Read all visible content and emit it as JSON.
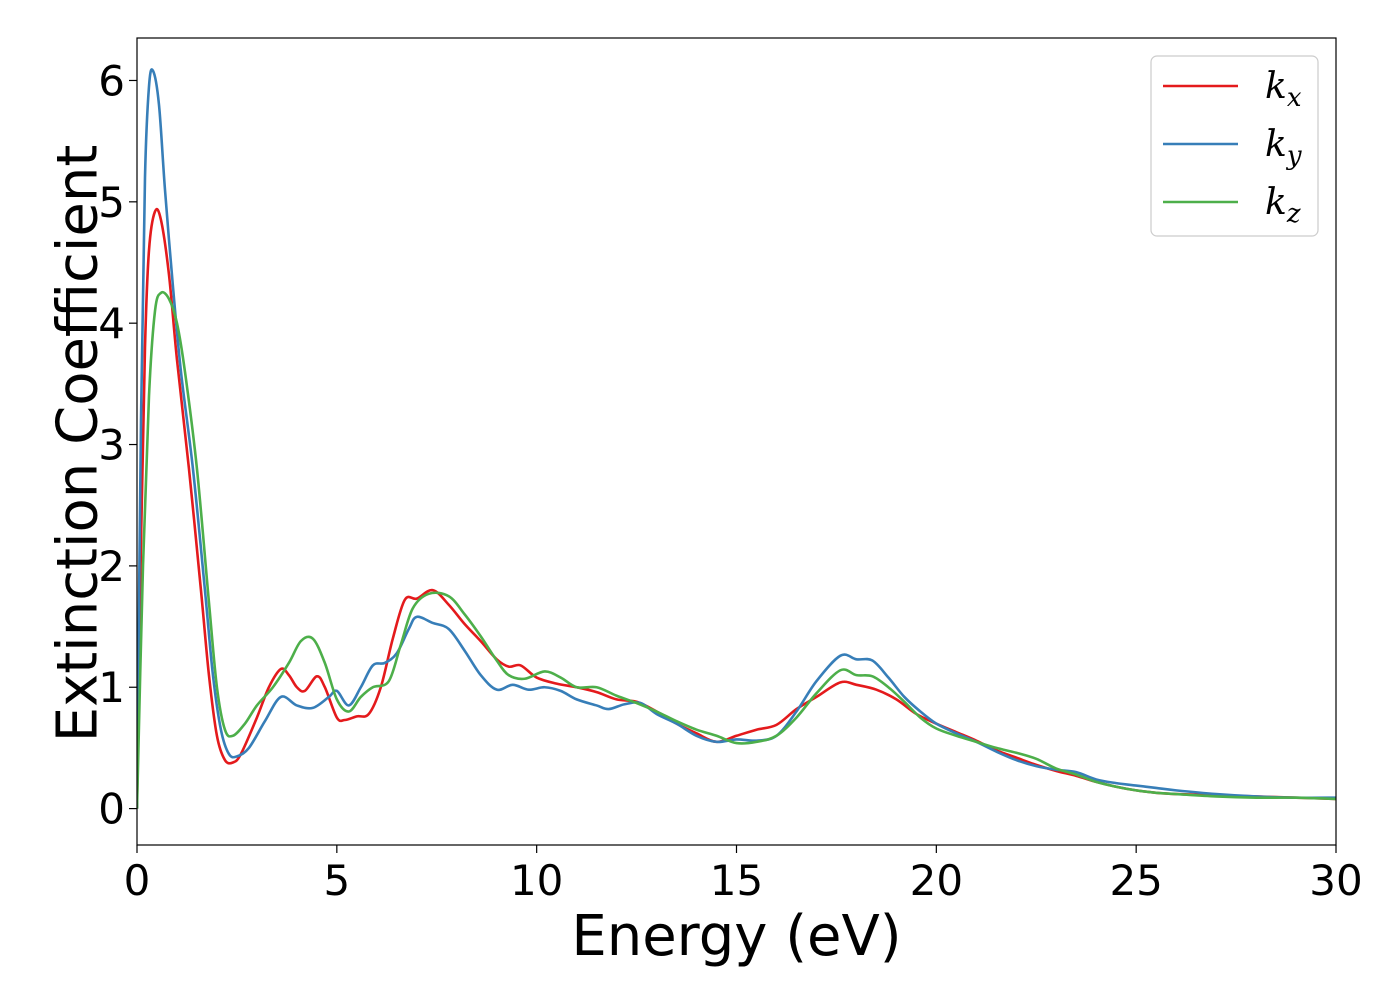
{
  "chart_data": {
    "type": "line",
    "title": "",
    "xlabel": "Energy (eV)",
    "ylabel": "Extinction Coefficient",
    "xlim": [
      0,
      30
    ],
    "ylim": [
      -0.3,
      6.35
    ],
    "xticks": [
      0,
      5,
      10,
      15,
      20,
      25,
      30
    ],
    "yticks": [
      0,
      1,
      2,
      3,
      4,
      5,
      6
    ],
    "grid": false,
    "legend_position": "top-right",
    "series": [
      {
        "name": "k",
        "subscript": "x",
        "color": "#e41a1c",
        "points": [
          [
            0,
            0
          ],
          [
            0.1,
            2.2
          ],
          [
            0.2,
            3.8
          ],
          [
            0.3,
            4.6
          ],
          [
            0.45,
            4.92
          ],
          [
            0.6,
            4.85
          ],
          [
            0.8,
            4.4
          ],
          [
            1.0,
            3.7
          ],
          [
            1.3,
            2.8
          ],
          [
            1.6,
            1.8
          ],
          [
            1.8,
            1.1
          ],
          [
            2.0,
            0.6
          ],
          [
            2.2,
            0.4
          ],
          [
            2.4,
            0.38
          ],
          [
            2.6,
            0.45
          ],
          [
            3.0,
            0.75
          ],
          [
            3.3,
            1.0
          ],
          [
            3.6,
            1.15
          ],
          [
            3.8,
            1.1
          ],
          [
            4.0,
            1.0
          ],
          [
            4.2,
            0.97
          ],
          [
            4.5,
            1.09
          ],
          [
            4.7,
            1.0
          ],
          [
            5.0,
            0.75
          ],
          [
            5.2,
            0.73
          ],
          [
            5.5,
            0.76
          ],
          [
            5.8,
            0.78
          ],
          [
            6.1,
            1.0
          ],
          [
            6.4,
            1.4
          ],
          [
            6.7,
            1.72
          ],
          [
            7.0,
            1.73
          ],
          [
            7.4,
            1.8
          ],
          [
            7.8,
            1.68
          ],
          [
            8.2,
            1.52
          ],
          [
            8.6,
            1.38
          ],
          [
            9.0,
            1.23
          ],
          [
            9.3,
            1.17
          ],
          [
            9.6,
            1.18
          ],
          [
            10.0,
            1.08
          ],
          [
            10.5,
            1.03
          ],
          [
            11.0,
            1.0
          ],
          [
            11.5,
            0.96
          ],
          [
            12.0,
            0.9
          ],
          [
            12.5,
            0.88
          ],
          [
            13.0,
            0.8
          ],
          [
            13.5,
            0.7
          ],
          [
            14.0,
            0.62
          ],
          [
            14.5,
            0.55
          ],
          [
            15.0,
            0.6
          ],
          [
            15.5,
            0.65
          ],
          [
            16.0,
            0.69
          ],
          [
            16.5,
            0.82
          ],
          [
            17.0,
            0.92
          ],
          [
            17.6,
            1.04
          ],
          [
            18.0,
            1.02
          ],
          [
            18.5,
            0.98
          ],
          [
            19.0,
            0.9
          ],
          [
            19.5,
            0.78
          ],
          [
            20.0,
            0.7
          ],
          [
            20.5,
            0.63
          ],
          [
            21.0,
            0.56
          ],
          [
            21.5,
            0.48
          ],
          [
            22.0,
            0.42
          ],
          [
            22.5,
            0.36
          ],
          [
            23.0,
            0.31
          ],
          [
            23.5,
            0.27
          ],
          [
            24.0,
            0.22
          ],
          [
            24.5,
            0.18
          ],
          [
            25.0,
            0.15
          ],
          [
            25.5,
            0.13
          ],
          [
            26.0,
            0.12
          ],
          [
            27.0,
            0.11
          ],
          [
            28.0,
            0.1
          ],
          [
            29.0,
            0.09
          ],
          [
            30.0,
            0.08
          ]
        ]
      },
      {
        "name": "k",
        "subscript": "y",
        "color": "#377eb8",
        "points": [
          [
            0,
            0
          ],
          [
            0.1,
            3.2
          ],
          [
            0.2,
            5.2
          ],
          [
            0.3,
            5.95
          ],
          [
            0.4,
            6.08
          ],
          [
            0.55,
            5.8
          ],
          [
            0.7,
            5.1
          ],
          [
            0.9,
            4.3
          ],
          [
            1.1,
            3.6
          ],
          [
            1.4,
            2.8
          ],
          [
            1.7,
            1.8
          ],
          [
            1.9,
            1.1
          ],
          [
            2.1,
            0.65
          ],
          [
            2.3,
            0.45
          ],
          [
            2.5,
            0.43
          ],
          [
            2.8,
            0.5
          ],
          [
            3.2,
            0.72
          ],
          [
            3.6,
            0.92
          ],
          [
            4.0,
            0.85
          ],
          [
            4.4,
            0.83
          ],
          [
            4.8,
            0.92
          ],
          [
            5.0,
            0.97
          ],
          [
            5.3,
            0.85
          ],
          [
            5.6,
            1.0
          ],
          [
            5.9,
            1.18
          ],
          [
            6.2,
            1.2
          ],
          [
            6.5,
            1.28
          ],
          [
            6.8,
            1.48
          ],
          [
            7.0,
            1.58
          ],
          [
            7.4,
            1.53
          ],
          [
            7.8,
            1.48
          ],
          [
            8.2,
            1.3
          ],
          [
            8.6,
            1.1
          ],
          [
            9.0,
            0.98
          ],
          [
            9.4,
            1.02
          ],
          [
            9.8,
            0.98
          ],
          [
            10.2,
            1.0
          ],
          [
            10.6,
            0.97
          ],
          [
            11.0,
            0.9
          ],
          [
            11.5,
            0.85
          ],
          [
            11.8,
            0.82
          ],
          [
            12.2,
            0.86
          ],
          [
            12.6,
            0.87
          ],
          [
            13.0,
            0.78
          ],
          [
            13.5,
            0.7
          ],
          [
            14.0,
            0.6
          ],
          [
            14.5,
            0.55
          ],
          [
            15.0,
            0.57
          ],
          [
            15.5,
            0.56
          ],
          [
            16.0,
            0.6
          ],
          [
            16.5,
            0.8
          ],
          [
            17.0,
            1.05
          ],
          [
            17.6,
            1.26
          ],
          [
            18.0,
            1.23
          ],
          [
            18.4,
            1.22
          ],
          [
            18.8,
            1.08
          ],
          [
            19.2,
            0.92
          ],
          [
            19.6,
            0.8
          ],
          [
            20.0,
            0.7
          ],
          [
            20.5,
            0.62
          ],
          [
            21.0,
            0.55
          ],
          [
            21.5,
            0.47
          ],
          [
            22.0,
            0.4
          ],
          [
            22.5,
            0.35
          ],
          [
            23.0,
            0.32
          ],
          [
            23.5,
            0.3
          ],
          [
            24.0,
            0.24
          ],
          [
            24.5,
            0.21
          ],
          [
            25.0,
            0.19
          ],
          [
            25.5,
            0.17
          ],
          [
            26.0,
            0.15
          ],
          [
            27.0,
            0.12
          ],
          [
            28.0,
            0.1
          ],
          [
            29.0,
            0.09
          ],
          [
            30.0,
            0.09
          ]
        ]
      },
      {
        "name": "k",
        "subscript": "z",
        "color": "#4daf4a",
        "points": [
          [
            0,
            0
          ],
          [
            0.15,
            2.0
          ],
          [
            0.3,
            3.4
          ],
          [
            0.45,
            4.1
          ],
          [
            0.6,
            4.25
          ],
          [
            0.8,
            4.2
          ],
          [
            1.0,
            4.0
          ],
          [
            1.2,
            3.6
          ],
          [
            1.5,
            2.8
          ],
          [
            1.8,
            1.7
          ],
          [
            2.0,
            1.0
          ],
          [
            2.2,
            0.65
          ],
          [
            2.4,
            0.6
          ],
          [
            2.7,
            0.7
          ],
          [
            3.0,
            0.85
          ],
          [
            3.4,
            1.0
          ],
          [
            3.8,
            1.2
          ],
          [
            4.1,
            1.38
          ],
          [
            4.4,
            1.4
          ],
          [
            4.7,
            1.2
          ],
          [
            5.0,
            0.9
          ],
          [
            5.3,
            0.8
          ],
          [
            5.6,
            0.92
          ],
          [
            5.9,
            1.0
          ],
          [
            6.3,
            1.05
          ],
          [
            6.6,
            1.35
          ],
          [
            6.9,
            1.65
          ],
          [
            7.3,
            1.77
          ],
          [
            7.8,
            1.75
          ],
          [
            8.2,
            1.6
          ],
          [
            8.6,
            1.42
          ],
          [
            9.0,
            1.22
          ],
          [
            9.3,
            1.1
          ],
          [
            9.7,
            1.07
          ],
          [
            10.2,
            1.13
          ],
          [
            10.6,
            1.08
          ],
          [
            11.0,
            1.0
          ],
          [
            11.5,
            1.0
          ],
          [
            12.0,
            0.93
          ],
          [
            12.5,
            0.87
          ],
          [
            13.0,
            0.8
          ],
          [
            13.5,
            0.72
          ],
          [
            14.0,
            0.65
          ],
          [
            14.5,
            0.6
          ],
          [
            15.0,
            0.54
          ],
          [
            15.5,
            0.55
          ],
          [
            16.0,
            0.6
          ],
          [
            16.5,
            0.75
          ],
          [
            17.0,
            0.95
          ],
          [
            17.6,
            1.14
          ],
          [
            18.0,
            1.1
          ],
          [
            18.4,
            1.09
          ],
          [
            18.8,
            1.0
          ],
          [
            19.2,
            0.88
          ],
          [
            19.6,
            0.75
          ],
          [
            20.0,
            0.66
          ],
          [
            20.5,
            0.6
          ],
          [
            21.0,
            0.55
          ],
          [
            21.5,
            0.5
          ],
          [
            22.0,
            0.46
          ],
          [
            22.5,
            0.41
          ],
          [
            23.0,
            0.33
          ],
          [
            23.5,
            0.28
          ],
          [
            24.0,
            0.22
          ],
          [
            24.5,
            0.18
          ],
          [
            25.0,
            0.15
          ],
          [
            25.5,
            0.13
          ],
          [
            26.0,
            0.12
          ],
          [
            27.0,
            0.1
          ],
          [
            28.0,
            0.09
          ],
          [
            29.0,
            0.09
          ],
          [
            30.0,
            0.08
          ]
        ]
      }
    ]
  }
}
